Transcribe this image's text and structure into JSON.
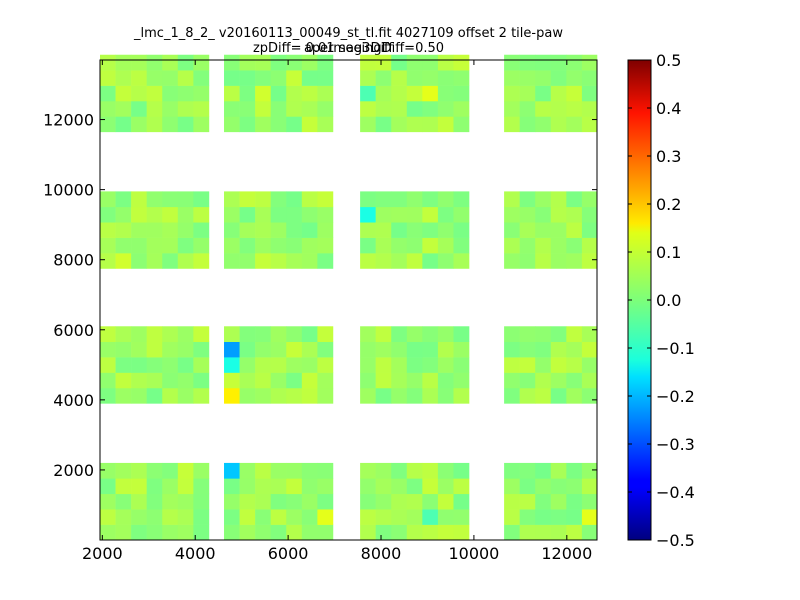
{
  "chart_data": {
    "type": "heatmap",
    "title": "_lmc_1_8_2_ v20160113_00049_st_tl.fit 4027109 offset 2 tile-paw apermag3Diff",
    "subtitle": "zpDiff= 0.01 seeingDiff=0.50",
    "xlim": [
      1950,
      12650
    ],
    "ylim": [
      0,
      13700
    ],
    "x_ticks": [
      2000,
      4000,
      6000,
      8000,
      10000,
      12000
    ],
    "y_ticks": [
      2000,
      4000,
      6000,
      8000,
      10000,
      12000
    ],
    "colorbar": {
      "min": -0.5,
      "max": 0.5,
      "ticks": [
        0.5,
        0.4,
        0.3,
        0.2,
        0.1,
        0.0,
        -0.1,
        -0.2,
        -0.3,
        -0.4,
        -0.5
      ],
      "tick_labels": [
        "0.5",
        "0.4",
        "0.3",
        "0.2",
        "0.1",
        "0.0",
        "−0.1",
        "−0.2",
        "−0.3",
        "−0.4",
        "−0.5"
      ],
      "colormap": "jet"
    },
    "cell_size": [
      335,
      440
    ],
    "row_bands": [
      {
        "y0": 0,
        "rows": 5
      },
      {
        "y0": 3900,
        "rows": 5
      },
      {
        "y0": 7750,
        "rows": 5
      },
      {
        "y0": 11650,
        "rows": 5
      }
    ],
    "column_blocks": [
      {
        "x0": 1950,
        "cols": 7
      },
      {
        "x0": 4620,
        "cols": 7
      },
      {
        "x0": 7550,
        "cols": 7
      },
      {
        "x0": 10650,
        "cols": 6
      }
    ],
    "notable_cells": [
      {
        "x": 4800,
        "y": 5450,
        "value": -0.22
      },
      {
        "x": 4800,
        "y": 5050,
        "value": -0.1
      },
      {
        "x": 4800,
        "y": 4150,
        "value": 0.14
      },
      {
        "x": 4800,
        "y": 1950,
        "value": -0.18
      },
      {
        "x": 7720,
        "y": 9450,
        "value": -0.1
      },
      {
        "x": 7720,
        "y": 12550,
        "value": -0.05
      },
      {
        "x": 8900,
        "y": 480,
        "value": -0.05
      },
      {
        "x": 6820,
        "y": 480,
        "value": 0.1
      },
      {
        "x": 12580,
        "y": 480,
        "value": 0.1
      },
      {
        "x": 9080,
        "y": 12850,
        "value": 0.1
      },
      {
        "x": 5360,
        "y": 12850,
        "value": 0.08
      },
      {
        "x": 2370,
        "y": 8150,
        "value": 0.08
      }
    ],
    "typical_value": 0.03
  }
}
